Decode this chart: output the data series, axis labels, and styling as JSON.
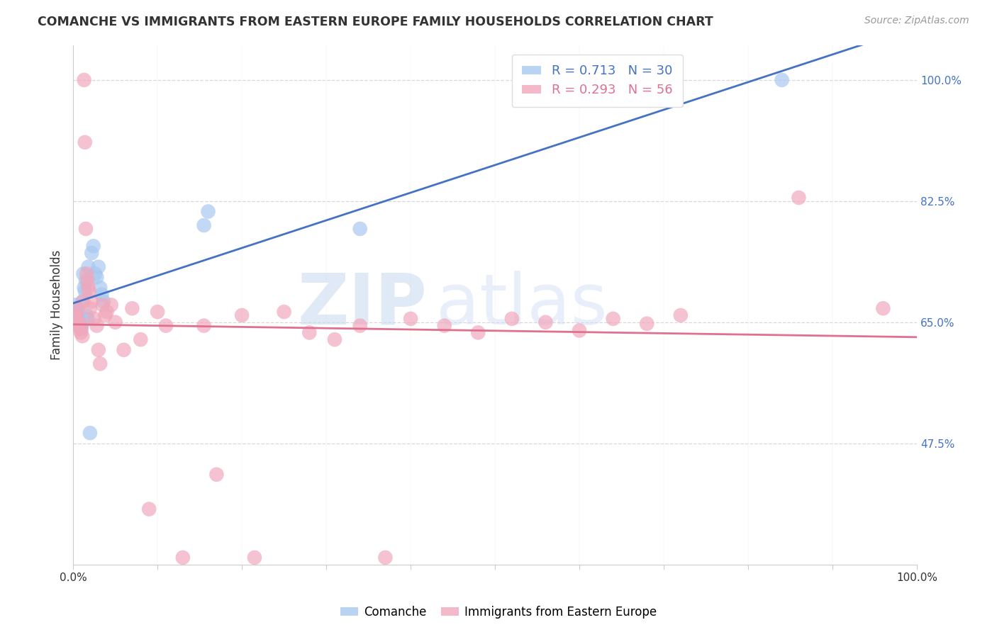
{
  "title": "COMANCHE VS IMMIGRANTS FROM EASTERN EUROPE FAMILY HOUSEHOLDS CORRELATION CHART",
  "source": "Source: ZipAtlas.com",
  "ylabel": "Family Households",
  "xlim": [
    0.0,
    1.0
  ],
  "ylim": [
    0.3,
    1.05
  ],
  "xtick_positions": [
    0.0,
    0.1,
    0.2,
    0.3,
    0.4,
    0.5,
    0.6,
    0.7,
    0.8,
    0.9,
    1.0
  ],
  "xtick_labels": [
    "0.0%",
    "",
    "",
    "",
    "",
    "",
    "",
    "",
    "",
    "",
    "100.0%"
  ],
  "ytick_positions": [
    0.475,
    0.65,
    0.825,
    1.0
  ],
  "ytick_labels": [
    "47.5%",
    "65.0%",
    "82.5%",
    "100.0%"
  ],
  "grid_color": "#d8d8d8",
  "background_color": "#ffffff",
  "watermark_zip": "ZIP",
  "watermark_atlas": "atlas",
  "comanche_color": "#a8c8f0",
  "eastern_europe_color": "#f0a8bc",
  "comanche_line_color": "#4472c4",
  "eastern_europe_line_color": "#e07090",
  "comanche_R": 0.713,
  "comanche_N": 30,
  "eastern_europe_R": 0.293,
  "eastern_europe_N": 56,
  "comanche_x": [
    0.002,
    0.003,
    0.004,
    0.005,
    0.006,
    0.007,
    0.008,
    0.009,
    0.01,
    0.011,
    0.012,
    0.013,
    0.014,
    0.015,
    0.016,
    0.017,
    0.018,
    0.02,
    0.022,
    0.024,
    0.026,
    0.028,
    0.03,
    0.032,
    0.034,
    0.036,
    0.155,
    0.16,
    0.34,
    0.84
  ],
  "comanche_y": [
    0.675,
    0.67,
    0.665,
    0.66,
    0.655,
    0.658,
    0.65,
    0.645,
    0.64,
    0.68,
    0.72,
    0.7,
    0.695,
    0.71,
    0.66,
    0.655,
    0.73,
    0.49,
    0.75,
    0.76,
    0.72,
    0.715,
    0.73,
    0.7,
    0.69,
    0.68,
    0.79,
    0.81,
    0.785,
    1.0
  ],
  "eastern_europe_x": [
    0.002,
    0.003,
    0.004,
    0.005,
    0.006,
    0.007,
    0.008,
    0.009,
    0.01,
    0.011,
    0.012,
    0.013,
    0.014,
    0.015,
    0.016,
    0.017,
    0.018,
    0.019,
    0.02,
    0.022,
    0.025,
    0.028,
    0.03,
    0.032,
    0.035,
    0.038,
    0.04,
    0.045,
    0.05,
    0.06,
    0.07,
    0.08,
    0.09,
    0.1,
    0.11,
    0.13,
    0.155,
    0.17,
    0.2,
    0.215,
    0.25,
    0.28,
    0.31,
    0.34,
    0.37,
    0.4,
    0.44,
    0.48,
    0.52,
    0.56,
    0.6,
    0.64,
    0.68,
    0.72,
    0.86,
    0.96
  ],
  "eastern_europe_y": [
    0.66,
    0.655,
    0.66,
    0.67,
    0.645,
    0.65,
    0.64,
    0.635,
    0.645,
    0.63,
    0.68,
    1.0,
    0.91,
    0.785,
    0.72,
    0.71,
    0.7,
    0.695,
    0.67,
    0.68,
    0.655,
    0.645,
    0.61,
    0.59,
    0.675,
    0.66,
    0.665,
    0.675,
    0.65,
    0.61,
    0.67,
    0.625,
    0.38,
    0.665,
    0.645,
    0.31,
    0.645,
    0.43,
    0.66,
    0.31,
    0.665,
    0.635,
    0.625,
    0.645,
    0.31,
    0.655,
    0.645,
    0.635,
    0.655,
    0.65,
    0.638,
    0.655,
    0.648,
    0.66,
    0.83,
    0.67
  ]
}
